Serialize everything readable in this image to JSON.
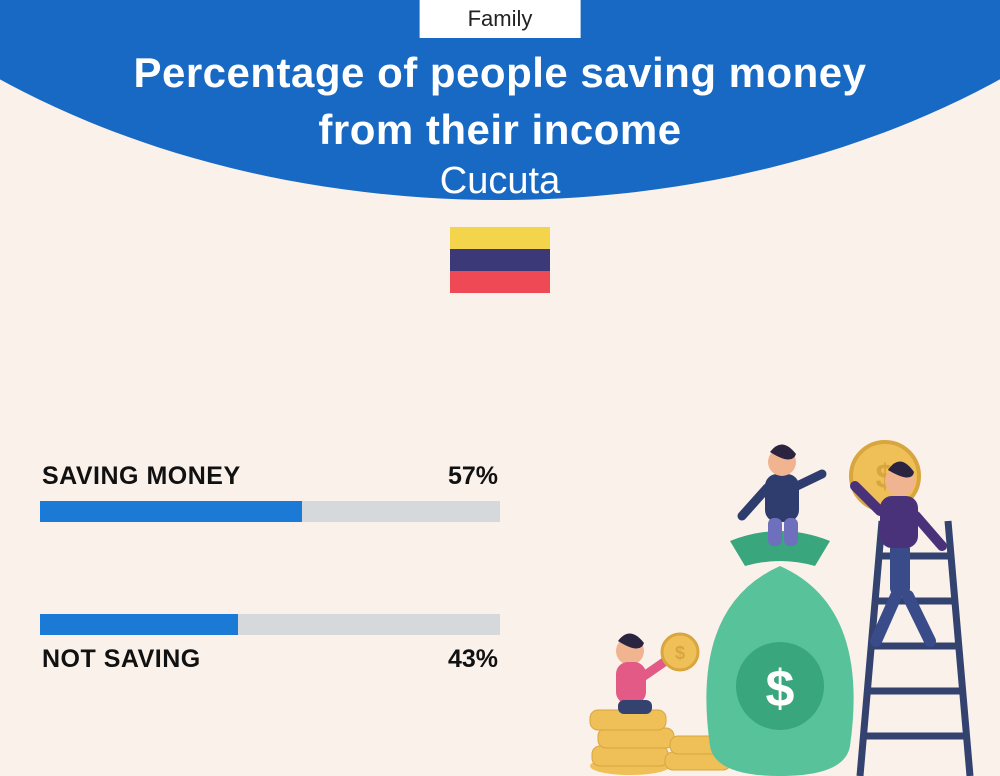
{
  "colors": {
    "header_bg": "#1769c3",
    "page_bg": "#faf1ea",
    "bar_fill": "#1b7ad6",
    "bar_track": "#d6d9db",
    "text_on_header": "#ffffff",
    "text_dark": "#111111"
  },
  "badge": {
    "label": "Family"
  },
  "title": {
    "line1": "Percentage of people saving money",
    "line2": "from their income"
  },
  "subtitle": "Cucuta",
  "flag": {
    "stripes": [
      "#f3d44a",
      "#3b3977",
      "#ef4956"
    ]
  },
  "bars": {
    "type": "bar",
    "track_color": "#d6d9db",
    "fill_color": "#1b7ad6",
    "items": [
      {
        "label": "SAVING MONEY",
        "value_label": "57%",
        "fill_pct": 57
      },
      {
        "label": "NOT SAVING",
        "value_label": "43%",
        "fill_pct": 43
      }
    ]
  },
  "illustration": {
    "name": "money-saving-illustration",
    "bag_color": "#58c29a",
    "bag_dark": "#3aa67e",
    "coin_color": "#efc058",
    "coin_dark": "#d9a53e",
    "ladder_color": "#33426f",
    "person1_top": "#2f3d6e",
    "person1_bottom": "#6e6fbd",
    "person2_top": "#4a327a",
    "person2_bottom": "#3a4b8a",
    "person3_top": "#e25a85",
    "skin": "#f0b490",
    "hair": "#2a2440"
  }
}
